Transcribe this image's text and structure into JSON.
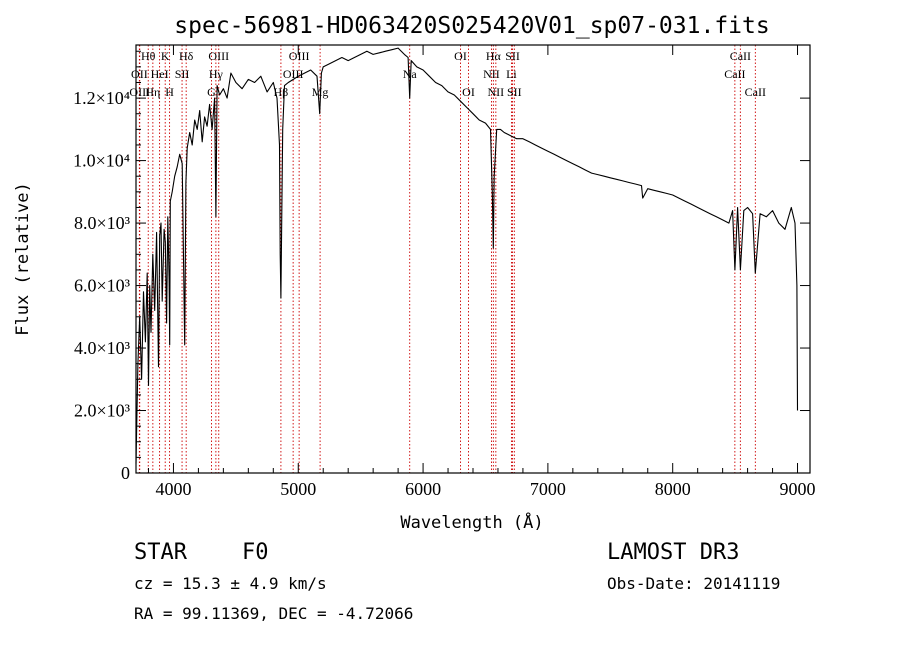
{
  "chart_data": {
    "type": "line",
    "title": "spec-56981-HD063420S025420V01_sp07-031.fits",
    "xlabel": "Wavelength (Å)",
    "ylabel": "Flux (relative)",
    "xlim": [
      3700,
      9100
    ],
    "ylim": [
      0,
      13700
    ],
    "x_ticks": [
      4000,
      5000,
      6000,
      7000,
      8000,
      9000
    ],
    "x_tick_labels": [
      "4000",
      "5000",
      "6000",
      "7000",
      "8000",
      "9000"
    ],
    "y_ticks": [
      0,
      2000,
      4000,
      6000,
      8000,
      10000,
      12000
    ],
    "y_tick_labels": [
      "0",
      "2.0×10³",
      "4.0×10³",
      "6.0×10³",
      "8.0×10³",
      "1.0×10⁴",
      "1.2×10⁴"
    ],
    "grid": false,
    "series": [
      {
        "name": "flux",
        "x": [
          3700,
          3715,
          3730,
          3745,
          3760,
          3775,
          3790,
          3800,
          3810,
          3820,
          3835,
          3850,
          3865,
          3880,
          3890,
          3900,
          3910,
          3925,
          3935,
          3945,
          3955,
          3965,
          3970,
          3975,
          3990,
          4010,
          4030,
          4050,
          4070,
          4090,
          4100,
          4110,
          4130,
          4150,
          4170,
          4190,
          4210,
          4230,
          4250,
          4270,
          4290,
          4310,
          4330,
          4340,
          4350,
          4370,
          4400,
          4430,
          4460,
          4500,
          4550,
          4600,
          4650,
          4700,
          4750,
          4800,
          4830,
          4850,
          4855,
          4861,
          4867,
          4875,
          4890,
          4920,
          4960,
          5000,
          5050,
          5100,
          5150,
          5172,
          5185,
          5200,
          5250,
          5300,
          5350,
          5400,
          5450,
          5500,
          5550,
          5600,
          5650,
          5700,
          5750,
          5800,
          5850,
          5880,
          5893,
          5905,
          5950,
          6000,
          6050,
          6100,
          6150,
          6200,
          6250,
          6300,
          6350,
          6400,
          6450,
          6500,
          6540,
          6555,
          6563,
          6570,
          6590,
          6620,
          6650,
          6700,
          6750,
          6800,
          6850,
          6900,
          6950,
          7000,
          7050,
          7100,
          7150,
          7200,
          7250,
          7300,
          7350,
          7400,
          7450,
          7500,
          7550,
          7600,
          7650,
          7700,
          7750,
          7760,
          7800,
          7850,
          7900,
          7950,
          8000,
          8050,
          8100,
          8150,
          8200,
          8250,
          8300,
          8350,
          8400,
          8450,
          8480,
          8498,
          8520,
          8542,
          8570,
          8600,
          8640,
          8662,
          8700,
          8750,
          8800,
          8850,
          8900,
          8950,
          8980,
          8995,
          9000
        ],
        "y": [
          300,
          3500,
          5000,
          3000,
          5800,
          4200,
          6400,
          2800,
          6000,
          4500,
          7000,
          5200,
          7700,
          3400,
          7600,
          8000,
          5500,
          7800,
          7400,
          4800,
          8200,
          6200,
          4100,
          8700,
          9000,
          9500,
          9800,
          10200,
          9900,
          4100,
          9300,
          10400,
          10900,
          10500,
          11300,
          11000,
          11600,
          10600,
          11400,
          11100,
          11800,
          11000,
          12000,
          8200,
          12400,
          12100,
          12300,
          12000,
          12800,
          12500,
          12300,
          12600,
          12500,
          12700,
          12200,
          12500,
          12000,
          10500,
          7000,
          5600,
          8000,
          11000,
          12400,
          12500,
          12600,
          12700,
          12800,
          12900,
          12700,
          11500,
          12800,
          13000,
          13100,
          13200,
          13300,
          13200,
          13300,
          13400,
          13500,
          13400,
          13450,
          13500,
          13550,
          13600,
          13400,
          13300,
          12000,
          13200,
          13000,
          12900,
          12700,
          12500,
          12400,
          12200,
          12100,
          11900,
          11700,
          11500,
          11300,
          11200,
          11000,
          9000,
          7200,
          9500,
          11000,
          11000,
          10900,
          10800,
          10700,
          10700,
          10600,
          10500,
          10400,
          10300,
          10200,
          10100,
          10000,
          9900,
          9800,
          9700,
          9600,
          9550,
          9500,
          9450,
          9400,
          9350,
          9300,
          9250,
          9200,
          8800,
          9100,
          9050,
          9000,
          8950,
          8900,
          8800,
          8700,
          8600,
          8500,
          8400,
          8300,
          8200,
          8100,
          8000,
          8400,
          6500,
          8500,
          6500,
          8400,
          8500,
          8300,
          6400,
          8300,
          8200,
          8400,
          8000,
          7800,
          8500,
          8000,
          6000,
          2000
        ]
      }
    ],
    "line_markers": [
      {
        "label": "Hθ",
        "x": 3798,
        "row": 0
      },
      {
        "label": "OII",
        "x": 3727,
        "row": 1
      },
      {
        "label": "OIII",
        "x": 3730,
        "row": 2
      },
      {
        "label": "K",
        "x": 3934,
        "row": 0
      },
      {
        "label": "HeI",
        "x": 3889,
        "row": 1
      },
      {
        "label": "Hη",
        "x": 3835,
        "row": 2
      },
      {
        "label": "Hδ",
        "x": 4102,
        "row": 0
      },
      {
        "label": "SII",
        "x": 4069,
        "row": 1
      },
      {
        "label": "H",
        "x": 3969,
        "row": 2
      },
      {
        "label": "OIII",
        "x": 4363,
        "row": 0
      },
      {
        "label": "Hγ",
        "x": 4340,
        "row": 1
      },
      {
        "label": "G",
        "x": 4305,
        "row": 2
      },
      {
        "label": "OIII",
        "x": 5007,
        "row": 0
      },
      {
        "label": "OIII",
        "x": 4959,
        "row": 1
      },
      {
        "label": "Hβ",
        "x": 4861,
        "row": 2
      },
      {
        "label": "Mg",
        "x": 5175,
        "row": 2
      },
      {
        "label": "Na",
        "x": 5893,
        "row": 1
      },
      {
        "label": "OI",
        "x": 6300,
        "row": 0
      },
      {
        "label": "OI",
        "x": 6364,
        "row": 2
      },
      {
        "label": "Hα",
        "x": 6563,
        "row": 0
      },
      {
        "label": "NII",
        "x": 6548,
        "row": 1
      },
      {
        "label": "NII",
        "x": 6583,
        "row": 2
      },
      {
        "label": "SII",
        "x": 6717,
        "row": 0
      },
      {
        "label": "Li",
        "x": 6708,
        "row": 1
      },
      {
        "label": "SII",
        "x": 6731,
        "row": 2
      },
      {
        "label": "CaII",
        "x": 8542,
        "row": 0
      },
      {
        "label": "CaII",
        "x": 8498,
        "row": 1
      },
      {
        "label": "CaII",
        "x": 8662,
        "row": 2
      }
    ]
  },
  "info": {
    "object_type": "STAR",
    "subclass": "F0",
    "survey": "LAMOST DR3",
    "redshift": "cz = 15.3 ± 4.9 km/s",
    "obs_date": "Obs-Date: 20141119",
    "coords": "RA =  99.11369, DEC =  -4.72066"
  },
  "colors": {
    "line": "#000000",
    "marker": "#cc0000"
  }
}
